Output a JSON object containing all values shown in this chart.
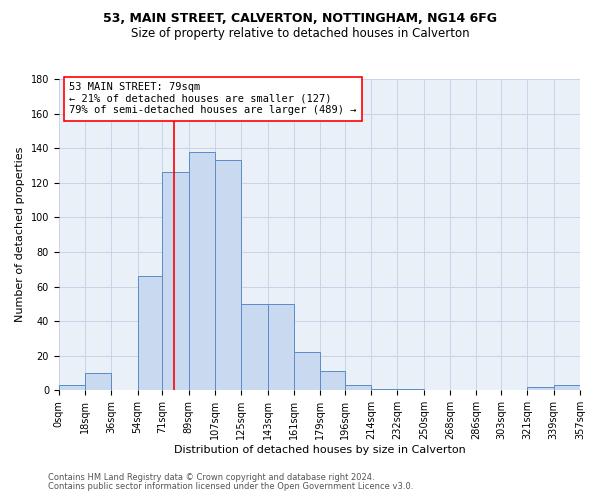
{
  "title_line1": "53, MAIN STREET, CALVERTON, NOTTINGHAM, NG14 6FG",
  "title_line2": "Size of property relative to detached houses in Calverton",
  "xlabel": "Distribution of detached houses by size in Calverton",
  "ylabel": "Number of detached properties",
  "bar_left_edges": [
    0,
    18,
    36,
    54,
    71,
    89,
    107,
    125,
    143,
    161,
    179,
    196,
    214,
    232,
    250,
    268,
    286,
    303,
    321,
    339
  ],
  "bar_widths": [
    18,
    18,
    18,
    17,
    18,
    18,
    18,
    18,
    18,
    18,
    17,
    18,
    18,
    18,
    18,
    18,
    17,
    18,
    18,
    18
  ],
  "bar_heights": [
    3,
    10,
    0,
    66,
    126,
    138,
    133,
    50,
    50,
    22,
    11,
    3,
    1,
    1,
    0,
    0,
    0,
    0,
    2,
    3
  ],
  "bar_face_color": "#c9d9f0",
  "bar_edge_color": "#5b8cc8",
  "property_line_x": 79,
  "annotation_line1": "53 MAIN STREET: 79sqm",
  "annotation_line2": "← 21% of detached houses are smaller (127)",
  "annotation_line3": "79% of semi-detached houses are larger (489) →",
  "ylim": [
    0,
    180
  ],
  "yticks": [
    0,
    20,
    40,
    60,
    80,
    100,
    120,
    140,
    160,
    180
  ],
  "xtick_labels": [
    "0sqm",
    "18sqm",
    "36sqm",
    "54sqm",
    "71sqm",
    "89sqm",
    "107sqm",
    "125sqm",
    "143sqm",
    "161sqm",
    "179sqm",
    "196sqm",
    "214sqm",
    "232sqm",
    "250sqm",
    "268sqm",
    "286sqm",
    "303sqm",
    "321sqm",
    "339sqm",
    "357sqm"
  ],
  "xtick_positions": [
    0,
    18,
    36,
    54,
    71,
    89,
    107,
    125,
    143,
    161,
    179,
    196,
    214,
    232,
    250,
    268,
    286,
    303,
    321,
    339,
    357
  ],
  "grid_color": "#c8d4e8",
  "background_color": "#eaf0f8",
  "footer_line1": "Contains HM Land Registry data © Crown copyright and database right 2024.",
  "footer_line2": "Contains public sector information licensed under the Open Government Licence v3.0.",
  "title_fontsize": 9,
  "subtitle_fontsize": 8.5,
  "axis_label_fontsize": 8,
  "tick_fontsize": 7,
  "annotation_fontsize": 7.5,
  "footer_fontsize": 6
}
